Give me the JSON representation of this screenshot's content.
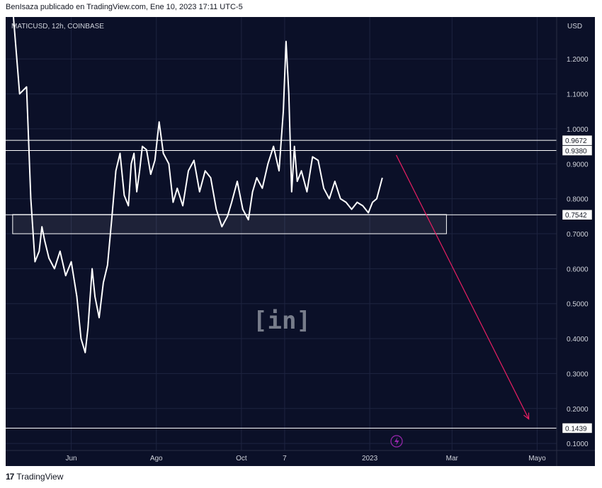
{
  "header": {
    "text": "BenIsaza publicado en TradingView.com, Ene 10, 2023 17:11 UTC-5"
  },
  "footer": {
    "brand": "TradingView",
    "logo_glyph": "17"
  },
  "chart_data": {
    "type": "line",
    "title": "MATICUSD, 12h, COINBASE",
    "currency": "USD",
    "ylim": [
      0.08,
      1.32
    ],
    "y_ticks": [
      "1.2000",
      "1.1000",
      "1.0000",
      "0.9000",
      "0.8000",
      "0.7000",
      "0.6000",
      "0.5000",
      "0.4000",
      "0.3000",
      "0.2000",
      "0.1000"
    ],
    "y_tick_values": [
      1.2,
      1.1,
      1.0,
      0.9,
      0.8,
      0.7,
      0.6,
      0.5,
      0.4,
      0.3,
      0.2,
      0.1
    ],
    "x_ticks": [
      "Jun",
      "Ago",
      "Oct",
      "7",
      "2023",
      "Mar",
      "Mayo"
    ],
    "x_tick_dates": [
      "2022-06-01",
      "2022-08-01",
      "2022-10-01",
      "2022-11-01",
      "2023-01-01",
      "2023-03-01",
      "2023-05-01"
    ],
    "xlim": [
      "2022-04-15",
      "2023-05-15"
    ],
    "series": [
      {
        "x": [
          "2022-04-20",
          "2022-04-25",
          "2022-04-30",
          "2022-05-03",
          "2022-05-06",
          "2022-05-09",
          "2022-05-11",
          "2022-05-13",
          "2022-05-16",
          "2022-05-20",
          "2022-05-24",
          "2022-05-28",
          "2022-06-01",
          "2022-06-05",
          "2022-06-08",
          "2022-06-11",
          "2022-06-13",
          "2022-06-16",
          "2022-06-18",
          "2022-06-21",
          "2022-06-24",
          "2022-06-27",
          "2022-06-30",
          "2022-07-03",
          "2022-07-06",
          "2022-07-09",
          "2022-07-12",
          "2022-07-14",
          "2022-07-16",
          "2022-07-18",
          "2022-07-20",
          "2022-07-22",
          "2022-07-25",
          "2022-07-28",
          "2022-07-31",
          "2022-08-03",
          "2022-08-06",
          "2022-08-10",
          "2022-08-13",
          "2022-08-16",
          "2022-08-20",
          "2022-08-24",
          "2022-08-28",
          "2022-09-01",
          "2022-09-05",
          "2022-09-09",
          "2022-09-13",
          "2022-09-17",
          "2022-09-21",
          "2022-09-24",
          "2022-09-28",
          "2022-10-02",
          "2022-10-06",
          "2022-10-09",
          "2022-10-12",
          "2022-10-16",
          "2022-10-20",
          "2022-10-24",
          "2022-10-28",
          "2022-10-31",
          "2022-11-02",
          "2022-11-04",
          "2022-11-06",
          "2022-11-08",
          "2022-11-10",
          "2022-11-13",
          "2022-11-17",
          "2022-11-21",
          "2022-11-25",
          "2022-11-29",
          "2022-12-03",
          "2022-12-07",
          "2022-12-11",
          "2022-12-15",
          "2022-12-19",
          "2022-12-23",
          "2022-12-27",
          "2022-12-31",
          "2023-01-03",
          "2023-01-06",
          "2023-01-10"
        ],
        "values": [
          1.35,
          1.1,
          1.12,
          0.8,
          0.62,
          0.65,
          0.72,
          0.68,
          0.63,
          0.6,
          0.65,
          0.58,
          0.62,
          0.52,
          0.4,
          0.36,
          0.43,
          0.6,
          0.52,
          0.46,
          0.56,
          0.61,
          0.74,
          0.88,
          0.93,
          0.81,
          0.78,
          0.9,
          0.93,
          0.82,
          0.88,
          0.95,
          0.94,
          0.87,
          0.91,
          1.02,
          0.93,
          0.9,
          0.79,
          0.83,
          0.78,
          0.88,
          0.91,
          0.82,
          0.88,
          0.86,
          0.77,
          0.72,
          0.75,
          0.79,
          0.85,
          0.77,
          0.74,
          0.82,
          0.86,
          0.83,
          0.9,
          0.95,
          0.88,
          1.05,
          1.25,
          1.1,
          0.82,
          0.95,
          0.85,
          0.88,
          0.82,
          0.92,
          0.91,
          0.83,
          0.8,
          0.85,
          0.8,
          0.79,
          0.77,
          0.79,
          0.78,
          0.76,
          0.79,
          0.8,
          0.86
        ]
      }
    ],
    "horizontal_levels": [
      {
        "value": 0.9672,
        "label": "0.9672"
      },
      {
        "value": 0.938,
        "label": "0.9380"
      },
      {
        "value": 0.7542,
        "label": "0.7542"
      },
      {
        "value": 0.1439,
        "label": "0.1439"
      }
    ],
    "support_zone": {
      "start": "2022-04-20",
      "end": "2023-02-25",
      "low": 0.7,
      "high": 0.755
    },
    "projection_arrow": {
      "start": [
        "2023-01-20",
        0.925
      ],
      "end": [
        "2023-04-25",
        0.17
      ],
      "color": "#e91e63"
    },
    "grid": true,
    "watermark": "[in]"
  }
}
